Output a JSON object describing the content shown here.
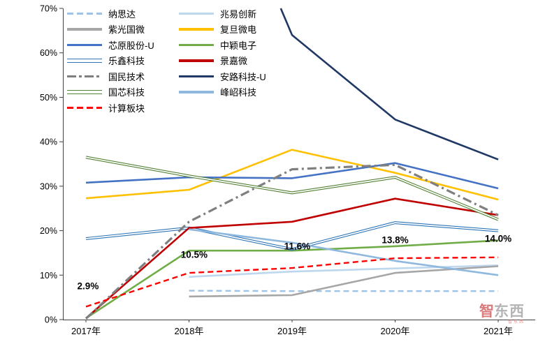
{
  "chart_data": {
    "type": "line",
    "title": "",
    "x_categories": [
      "2017年",
      "2018年",
      "2019年",
      "2020年",
      "2021年"
    ],
    "x_range": [
      2017,
      2021
    ],
    "y_ticks": [
      "0%",
      "10%",
      "20%",
      "30%",
      "40%",
      "50%",
      "60%",
      "70%"
    ],
    "ylim": [
      0,
      70
    ],
    "grid": false,
    "legend_position": "top-left",
    "series": [
      {
        "name": "纳思达",
        "color": "#9DC3E6",
        "style": "dashed",
        "points": [
          [
            2018,
            6.5
          ],
          [
            2019,
            6.4
          ],
          [
            2020,
            6.4
          ],
          [
            2021,
            6.4
          ]
        ]
      },
      {
        "name": "兆易创新",
        "color": "#BDD7EE",
        "style": "solid",
        "points": [
          [
            2018,
            9.6
          ],
          [
            2019,
            10.8
          ],
          [
            2020,
            11.5
          ],
          [
            2021,
            12.2
          ]
        ]
      },
      {
        "name": "紫光国微",
        "color": "#A6A6A6",
        "style": "solid",
        "points": [
          [
            2018,
            5.2
          ],
          [
            2019,
            5.5
          ],
          [
            2020,
            10.5
          ],
          [
            2021,
            12.0
          ]
        ]
      },
      {
        "name": "复旦微电",
        "color": "#FFC000",
        "style": "solid",
        "points": [
          [
            2017,
            27.3
          ],
          [
            2018,
            29.2
          ],
          [
            2019,
            38.2
          ],
          [
            2020,
            33.0
          ],
          [
            2021,
            27.0
          ]
        ]
      },
      {
        "name": "芯原股份-U",
        "color": "#4472C4",
        "style": "solid",
        "points": [
          [
            2017,
            30.8
          ],
          [
            2018,
            32.0
          ],
          [
            2019,
            31.8
          ],
          [
            2020,
            35.2
          ],
          [
            2021,
            29.5
          ]
        ]
      },
      {
        "name": "中颖电子",
        "color": "#70AD47",
        "style": "solid",
        "points": [
          [
            2017,
            0.3
          ],
          [
            2018,
            15.5
          ],
          [
            2019,
            15.5
          ],
          [
            2020,
            16.5
          ],
          [
            2021,
            17.8
          ]
        ]
      },
      {
        "name": "乐鑫科技",
        "color": "#2E75B6",
        "style": "double",
        "points": [
          [
            2017,
            18.2
          ],
          [
            2018,
            20.6
          ],
          [
            2019,
            15.8
          ],
          [
            2020,
            21.8
          ],
          [
            2021,
            20.0
          ]
        ]
      },
      {
        "name": "景嘉微",
        "color": "#C00000",
        "style": "solid",
        "points": [
          [
            2017,
            0.3
          ],
          [
            2018,
            20.6
          ],
          [
            2019,
            22.0
          ],
          [
            2020,
            27.2
          ],
          [
            2021,
            23.5
          ]
        ]
      },
      {
        "name": "国民技术",
        "color": "#7F7F7F",
        "style": "dashdot",
        "points": [
          [
            2017,
            0.2
          ],
          [
            2018,
            22.0
          ],
          [
            2019,
            33.8
          ],
          [
            2020,
            34.8
          ],
          [
            2021,
            23.5
          ]
        ]
      },
      {
        "name": "安路科技-U",
        "color": "#203864",
        "style": "solid",
        "points": [
          [
            2018.89,
            70
          ],
          [
            2019,
            64.0
          ],
          [
            2020,
            45.0
          ],
          [
            2021,
            36.0
          ]
        ]
      },
      {
        "name": "国芯科技",
        "color": "#538135",
        "style": "double",
        "points": [
          [
            2017,
            36.5
          ],
          [
            2018,
            32.3
          ],
          [
            2019,
            28.5
          ],
          [
            2020,
            32.0
          ],
          [
            2021,
            22.5
          ]
        ]
      },
      {
        "name": "峰岹科技",
        "color": "#8FB8DE",
        "style": "solid",
        "points": [
          [
            2018,
            20.3
          ],
          [
            2019,
            17.3
          ],
          [
            2020,
            13.2
          ],
          [
            2021,
            10.0
          ]
        ]
      },
      {
        "name": "计算板块",
        "color": "#FF0000",
        "style": "dashed",
        "points": [
          [
            2017,
            2.9
          ],
          [
            2018,
            10.5
          ],
          [
            2019,
            11.6
          ],
          [
            2020,
            13.8
          ],
          [
            2021,
            14.0
          ]
        ]
      }
    ],
    "legend_columns": [
      [
        "纳思达",
        "紫光国微",
        "芯原股份-U",
        "乐鑫科技",
        "国民技术",
        "国芯科技",
        "计算板块"
      ],
      [
        "兆易创新",
        "复旦微电",
        "中颖电子",
        "景嘉微",
        "安路科技-U",
        "峰岹科技"
      ]
    ],
    "annotations": [
      {
        "text": "2.9%",
        "year": 2017.02,
        "pct": 7.5
      },
      {
        "text": "10.5%",
        "year": 2018.05,
        "pct": 14.6
      },
      {
        "text": "11.6%",
        "year": 2019.05,
        "pct": 16.5
      },
      {
        "text": "13.8%",
        "year": 2020.0,
        "pct": 17.9
      },
      {
        "text": "14.0%",
        "year": 2021.0,
        "pct": 18.2
      }
    ]
  },
  "watermark": {
    "first": "智",
    "rest": "东西",
    "sub": "智东西"
  }
}
